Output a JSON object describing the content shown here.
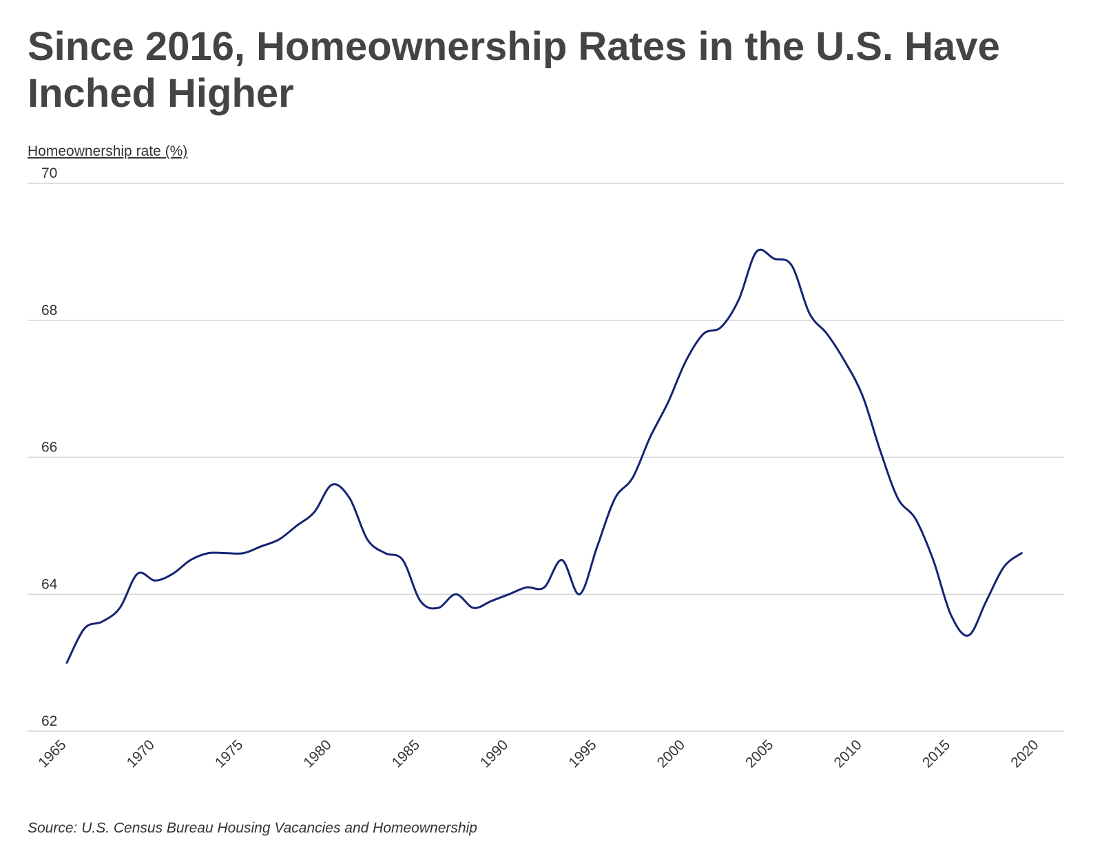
{
  "chart_data": {
    "type": "line",
    "title": "Since 2016, Homeownership Rates in the U.S. Have Inched Higher",
    "ylabel": "Homeownership rate (%)",
    "xlabel": "",
    "source": "Source: U.S. Census Bureau Housing Vacancies and Homeownership",
    "xlim": [
      1965,
      2020
    ],
    "ylim": [
      62,
      70
    ],
    "x_ticks": [
      1965,
      1970,
      1975,
      1980,
      1985,
      1990,
      1995,
      2000,
      2005,
      2010,
      2015,
      2020
    ],
    "y_ticks": [
      62,
      64,
      66,
      68,
      70
    ],
    "grid": "horizontal",
    "colors": {
      "series": "#152473",
      "grid": "#d4d4d4",
      "title": "#444444"
    },
    "series": [
      {
        "x": [
          1965,
          1966,
          1967,
          1968,
          1969,
          1970,
          1971,
          1972,
          1973,
          1974,
          1975,
          1976,
          1977,
          1978,
          1979,
          1980,
          1981,
          1982,
          1983,
          1984,
          1985,
          1986,
          1987,
          1988,
          1989,
          1990,
          1991,
          1992,
          1993,
          1994,
          1995,
          1996,
          1997,
          1998,
          1999,
          2000,
          2001,
          2002,
          2003,
          2004,
          2005,
          2006,
          2007,
          2008,
          2009,
          2010,
          2011,
          2012,
          2013,
          2014,
          2015,
          2016,
          2017,
          2018,
          2019
        ],
        "values": [
          63.0,
          63.5,
          63.6,
          63.8,
          64.3,
          64.2,
          64.3,
          64.5,
          64.6,
          64.6,
          64.6,
          64.7,
          64.8,
          65.0,
          65.2,
          65.6,
          65.4,
          64.8,
          64.6,
          64.5,
          63.9,
          63.8,
          64.0,
          63.8,
          63.9,
          64.0,
          64.1,
          64.1,
          64.5,
          64.0,
          64.7,
          65.4,
          65.7,
          66.3,
          66.8,
          67.4,
          67.8,
          67.9,
          68.3,
          69.0,
          68.9,
          68.8,
          68.1,
          67.8,
          67.4,
          66.9,
          66.1,
          65.4,
          65.1,
          64.5,
          63.7,
          63.4,
          63.9,
          64.4,
          64.6
        ]
      }
    ]
  }
}
